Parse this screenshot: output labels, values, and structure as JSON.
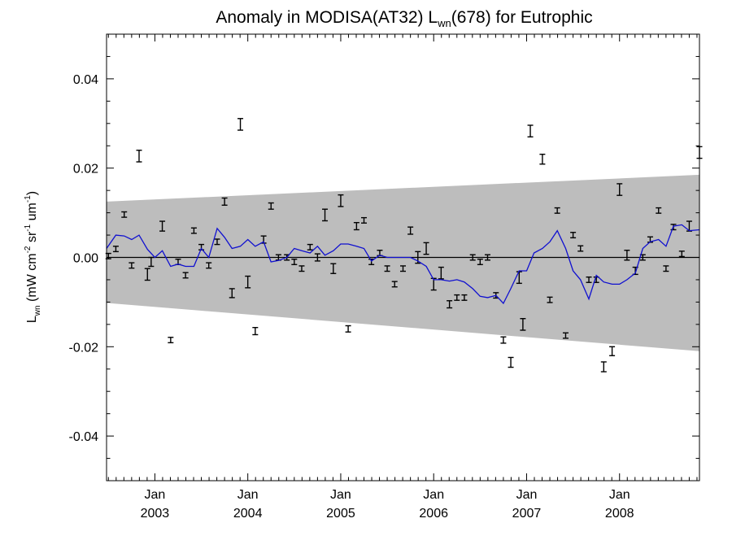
{
  "chart_data": {
    "type": "line",
    "title": {
      "prefix": "Anomaly in MODISA(AT32) L",
      "subscript": "wn",
      "suffix": "(678) for Eutrophic"
    },
    "ylabel": {
      "parts": [
        {
          "text": "L",
          "style": "normal"
        },
        {
          "text": "wn",
          "style": "sub"
        },
        {
          "text": " (mW cm",
          "style": "normal"
        },
        {
          "text": "-2",
          "style": "sup"
        },
        {
          "text": " sr",
          "style": "normal"
        },
        {
          "text": "-1",
          "style": "sup"
        },
        {
          "text": " um",
          "style": "normal"
        },
        {
          "text": "-1",
          "style": "sup"
        },
        {
          "text": ")",
          "style": "normal"
        }
      ]
    },
    "xlim": [
      2002.48,
      2008.86
    ],
    "ylim": [
      -0.05,
      0.05
    ],
    "yticks": [
      {
        "value": 0.04,
        "label": "0.04"
      },
      {
        "value": 0.02,
        "label": "0.02"
      },
      {
        "value": 0.0,
        "label": "0.00"
      },
      {
        "value": -0.02,
        "label": "-0.02"
      },
      {
        "value": -0.04,
        "label": "-0.04"
      }
    ],
    "xticks": [
      {
        "value": 2003.0,
        "month": "Jan",
        "year": "2003"
      },
      {
        "value": 2004.0,
        "month": "Jan",
        "year": "2004"
      },
      {
        "value": 2005.0,
        "month": "Jan",
        "year": "2005"
      },
      {
        "value": 2006.0,
        "month": "Jan",
        "year": "2006"
      },
      {
        "value": 2007.0,
        "month": "Jan",
        "year": "2007"
      },
      {
        "value": 2008.0,
        "month": "Jan",
        "year": "2008"
      }
    ],
    "band": {
      "x": [
        2002.48,
        2008.86
      ],
      "upper": [
        0.0125,
        0.0185
      ],
      "lower": [
        -0.0102,
        -0.021
      ]
    },
    "zero_line": 0.0,
    "series": [
      {
        "kind": "error_bars",
        "color": "#000000",
        "points": [
          {
            "x": 2002.5,
            "y": 0.0003,
            "err": 0.0006
          },
          {
            "x": 2002.58,
            "y": 0.0019,
            "err": 0.0006
          },
          {
            "x": 2002.67,
            "y": 0.0096,
            "err": 0.0006
          },
          {
            "x": 2002.75,
            "y": -0.0018,
            "err": 0.0006
          },
          {
            "x": 2002.83,
            "y": 0.0227,
            "err": 0.0013
          },
          {
            "x": 2002.92,
            "y": -0.0038,
            "err": 0.0013
          },
          {
            "x": 2002.96,
            "y": -0.001,
            "err": 0.001
          },
          {
            "x": 2003.08,
            "y": 0.007,
            "err": 0.0011
          },
          {
            "x": 2003.17,
            "y": -0.0185,
            "err": 0.0006
          },
          {
            "x": 2003.25,
            "y": -0.001,
            "err": 0.0006
          },
          {
            "x": 2003.33,
            "y": -0.004,
            "err": 0.0006
          },
          {
            "x": 2003.42,
            "y": 0.006,
            "err": 0.0006
          },
          {
            "x": 2003.5,
            "y": 0.0023,
            "err": 0.0006
          },
          {
            "x": 2003.58,
            "y": -0.0018,
            "err": 0.0006
          },
          {
            "x": 2003.67,
            "y": 0.0035,
            "err": 0.0006
          },
          {
            "x": 2003.75,
            "y": 0.0125,
            "err": 0.0008
          },
          {
            "x": 2003.83,
            "y": -0.008,
            "err": 0.001
          },
          {
            "x": 2003.92,
            "y": 0.0298,
            "err": 0.0013
          },
          {
            "x": 2004.0,
            "y": -0.0055,
            "err": 0.0013
          },
          {
            "x": 2004.08,
            "y": -0.0165,
            "err": 0.0008
          },
          {
            "x": 2004.17,
            "y": 0.004,
            "err": 0.0008
          },
          {
            "x": 2004.25,
            "y": 0.0115,
            "err": 0.0007
          },
          {
            "x": 2004.33,
            "y": 0.0,
            "err": 0.0006
          },
          {
            "x": 2004.42,
            "y": 0.0,
            "err": 0.0006
          },
          {
            "x": 2004.5,
            "y": -0.001,
            "err": 0.0006
          },
          {
            "x": 2004.58,
            "y": -0.0025,
            "err": 0.0006
          },
          {
            "x": 2004.67,
            "y": 0.0023,
            "err": 0.0006
          },
          {
            "x": 2004.75,
            "y": 0.0,
            "err": 0.0008
          },
          {
            "x": 2004.83,
            "y": 0.0095,
            "err": 0.0013
          },
          {
            "x": 2004.92,
            "y": -0.0025,
            "err": 0.0011
          },
          {
            "x": 2005.0,
            "y": 0.0127,
            "err": 0.0013
          },
          {
            "x": 2005.08,
            "y": -0.016,
            "err": 0.0007
          },
          {
            "x": 2005.17,
            "y": 0.007,
            "err": 0.0008
          },
          {
            "x": 2005.25,
            "y": 0.0083,
            "err": 0.0006
          },
          {
            "x": 2005.33,
            "y": -0.001,
            "err": 0.0006
          },
          {
            "x": 2005.42,
            "y": 0.001,
            "err": 0.0006
          },
          {
            "x": 2005.5,
            "y": -0.0025,
            "err": 0.0006
          },
          {
            "x": 2005.58,
            "y": -0.006,
            "err": 0.0006
          },
          {
            "x": 2005.67,
            "y": -0.0025,
            "err": 0.0006
          },
          {
            "x": 2005.75,
            "y": 0.006,
            "err": 0.0008
          },
          {
            "x": 2005.83,
            "y": 0.0,
            "err": 0.0013
          },
          {
            "x": 2005.92,
            "y": 0.002,
            "err": 0.0013
          },
          {
            "x": 2006.0,
            "y": -0.006,
            "err": 0.0013
          },
          {
            "x": 2006.08,
            "y": -0.0035,
            "err": 0.0013
          },
          {
            "x": 2006.17,
            "y": -0.0105,
            "err": 0.0008
          },
          {
            "x": 2006.25,
            "y": -0.009,
            "err": 0.0006
          },
          {
            "x": 2006.33,
            "y": -0.009,
            "err": 0.0006
          },
          {
            "x": 2006.42,
            "y": 0.0,
            "err": 0.0006
          },
          {
            "x": 2006.5,
            "y": -0.001,
            "err": 0.0006
          },
          {
            "x": 2006.58,
            "y": 0.0,
            "err": 0.0006
          },
          {
            "x": 2006.67,
            "y": -0.0085,
            "err": 0.0006
          },
          {
            "x": 2006.75,
            "y": -0.0185,
            "err": 0.0007
          },
          {
            "x": 2006.83,
            "y": -0.0235,
            "err": 0.0011
          },
          {
            "x": 2006.92,
            "y": -0.0045,
            "err": 0.0013
          },
          {
            "x": 2006.96,
            "y": -0.015,
            "err": 0.0013
          },
          {
            "x": 2007.04,
            "y": 0.0283,
            "err": 0.0013
          },
          {
            "x": 2007.17,
            "y": 0.022,
            "err": 0.0011
          },
          {
            "x": 2007.25,
            "y": -0.0095,
            "err": 0.0006
          },
          {
            "x": 2007.33,
            "y": 0.0105,
            "err": 0.0006
          },
          {
            "x": 2007.42,
            "y": -0.0175,
            "err": 0.0006
          },
          {
            "x": 2007.5,
            "y": 0.005,
            "err": 0.0006
          },
          {
            "x": 2007.58,
            "y": 0.002,
            "err": 0.0006
          },
          {
            "x": 2007.67,
            "y": -0.005,
            "err": 0.0006
          },
          {
            "x": 2007.75,
            "y": -0.005,
            "err": 0.0006
          },
          {
            "x": 2007.83,
            "y": -0.0245,
            "err": 0.0011
          },
          {
            "x": 2007.92,
            "y": -0.021,
            "err": 0.001
          },
          {
            "x": 2008.0,
            "y": 0.0152,
            "err": 0.0013
          },
          {
            "x": 2008.08,
            "y": 0.0005,
            "err": 0.0011
          },
          {
            "x": 2008.17,
            "y": -0.003,
            "err": 0.0008
          },
          {
            "x": 2008.25,
            "y": 0.0,
            "err": 0.0006
          },
          {
            "x": 2008.33,
            "y": 0.004,
            "err": 0.0006
          },
          {
            "x": 2008.42,
            "y": 0.0105,
            "err": 0.0006
          },
          {
            "x": 2008.5,
            "y": -0.0025,
            "err": 0.0006
          },
          {
            "x": 2008.58,
            "y": 0.0068,
            "err": 0.0006
          },
          {
            "x": 2008.67,
            "y": 0.0008,
            "err": 0.0006
          },
          {
            "x": 2008.75,
            "y": 0.007,
            "err": 0.0011
          },
          {
            "x": 2008.86,
            "y": 0.0235,
            "err": 0.0013
          }
        ]
      },
      {
        "kind": "line",
        "color": "#1010d0",
        "points": [
          [
            2002.48,
            0.002
          ],
          [
            2002.58,
            0.005
          ],
          [
            2002.67,
            0.0048
          ],
          [
            2002.75,
            0.004
          ],
          [
            2002.83,
            0.005
          ],
          [
            2002.92,
            0.0018
          ],
          [
            2003.0,
            -0.0
          ],
          [
            2003.08,
            0.0015
          ],
          [
            2003.17,
            -0.002
          ],
          [
            2003.25,
            -0.0015
          ],
          [
            2003.33,
            -0.002
          ],
          [
            2003.42,
            -0.002
          ],
          [
            2003.5,
            0.002
          ],
          [
            2003.58,
            0.0
          ],
          [
            2003.67,
            0.0065
          ],
          [
            2003.75,
            0.0045
          ],
          [
            2003.83,
            0.002
          ],
          [
            2003.92,
            0.0025
          ],
          [
            2004.0,
            0.004
          ],
          [
            2004.08,
            0.0025
          ],
          [
            2004.17,
            0.0035
          ],
          [
            2004.25,
            -0.001
          ],
          [
            2004.33,
            -0.0007
          ],
          [
            2004.42,
            0.0
          ],
          [
            2004.5,
            0.002
          ],
          [
            2004.58,
            0.0015
          ],
          [
            2004.67,
            0.001
          ],
          [
            2004.75,
            0.0025
          ],
          [
            2004.83,
            0.0005
          ],
          [
            2004.92,
            0.0015
          ],
          [
            2005.0,
            0.003
          ],
          [
            2005.08,
            0.003
          ],
          [
            2005.17,
            0.0025
          ],
          [
            2005.25,
            0.002
          ],
          [
            2005.33,
            -0.0008
          ],
          [
            2005.42,
            0.0005
          ],
          [
            2005.5,
            0.0
          ],
          [
            2005.58,
            0.0
          ],
          [
            2005.67,
            0.0
          ],
          [
            2005.75,
            0.0
          ],
          [
            2005.83,
            -0.0008
          ],
          [
            2005.92,
            -0.002
          ],
          [
            2006.0,
            -0.005
          ],
          [
            2006.08,
            -0.005
          ],
          [
            2006.17,
            -0.0053
          ],
          [
            2006.25,
            -0.005
          ],
          [
            2006.33,
            -0.0055
          ],
          [
            2006.42,
            -0.007
          ],
          [
            2006.5,
            -0.0087
          ],
          [
            2006.58,
            -0.009
          ],
          [
            2006.67,
            -0.0085
          ],
          [
            2006.75,
            -0.0103
          ],
          [
            2006.83,
            -0.007
          ],
          [
            2006.92,
            -0.003
          ],
          [
            2007.0,
            -0.003
          ],
          [
            2007.08,
            0.001
          ],
          [
            2007.17,
            0.002
          ],
          [
            2007.25,
            0.0035
          ],
          [
            2007.33,
            0.006
          ],
          [
            2007.42,
            0.002
          ],
          [
            2007.5,
            -0.003
          ],
          [
            2007.58,
            -0.005
          ],
          [
            2007.67,
            -0.0093
          ],
          [
            2007.75,
            -0.004
          ],
          [
            2007.83,
            -0.0055
          ],
          [
            2007.92,
            -0.006
          ],
          [
            2008.0,
            -0.006
          ],
          [
            2008.08,
            -0.005
          ],
          [
            2008.17,
            -0.0035
          ],
          [
            2008.25,
            0.002
          ],
          [
            2008.33,
            0.0035
          ],
          [
            2008.42,
            0.004
          ],
          [
            2008.5,
            0.0025
          ],
          [
            2008.58,
            0.007
          ],
          [
            2008.67,
            0.0073
          ],
          [
            2008.75,
            0.006
          ],
          [
            2008.86,
            0.0062
          ]
        ]
      }
    ],
    "colors": {
      "band": "#bdbdbd",
      "errorbar": "#000000",
      "line": "#1010d0",
      "axes": "#000000"
    }
  }
}
